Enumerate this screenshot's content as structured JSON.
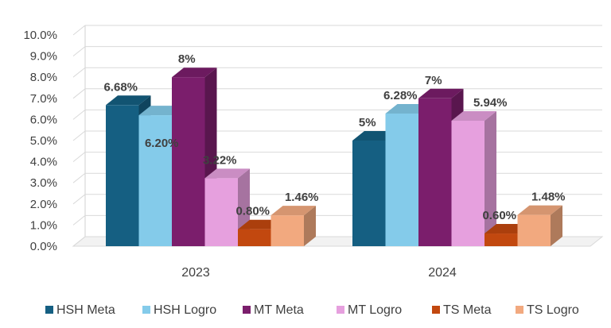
{
  "chart_data": {
    "type": "bar",
    "title": "",
    "xlabel": "",
    "ylabel": "",
    "ylim": [
      0,
      10
    ],
    "y_tick_labels": [
      "0.0%",
      "1.0%",
      "2.0%",
      "3.0%",
      "4.0%",
      "5.0%",
      "6.0%",
      "7.0%",
      "8.0%",
      "9.0%",
      "10.0%"
    ],
    "categories": [
      "2023",
      "2024"
    ],
    "legend_position": "bottom",
    "grid": true,
    "series": [
      {
        "name": "HSH Meta",
        "color": "#155F82",
        "values": [
          6.68,
          5
        ],
        "labels": [
          "6.68%",
          "5%"
        ]
      },
      {
        "name": "HSH Logro",
        "color": "#84CBEA",
        "values": [
          6.2,
          6.28
        ],
        "labels": [
          "6.20%",
          "6.28%"
        ]
      },
      {
        "name": "MT Meta",
        "color": "#7B1E6C",
        "values": [
          8,
          7
        ],
        "labels": [
          "8%",
          "7%"
        ]
      },
      {
        "name": "MT Logro",
        "color": "#E6A0DE",
        "values": [
          3.22,
          5.94
        ],
        "labels": [
          "3.22%",
          "5.94%"
        ]
      },
      {
        "name": "TS Meta",
        "color": "#C2480F",
        "values": [
          0.8,
          0.6
        ],
        "labels": [
          "0.80%",
          "0.60%"
        ]
      },
      {
        "name": "TS Logro",
        "color": "#F2A97F",
        "values": [
          1.46,
          1.48
        ],
        "labels": [
          "1.46%",
          "1.48%"
        ]
      }
    ]
  }
}
